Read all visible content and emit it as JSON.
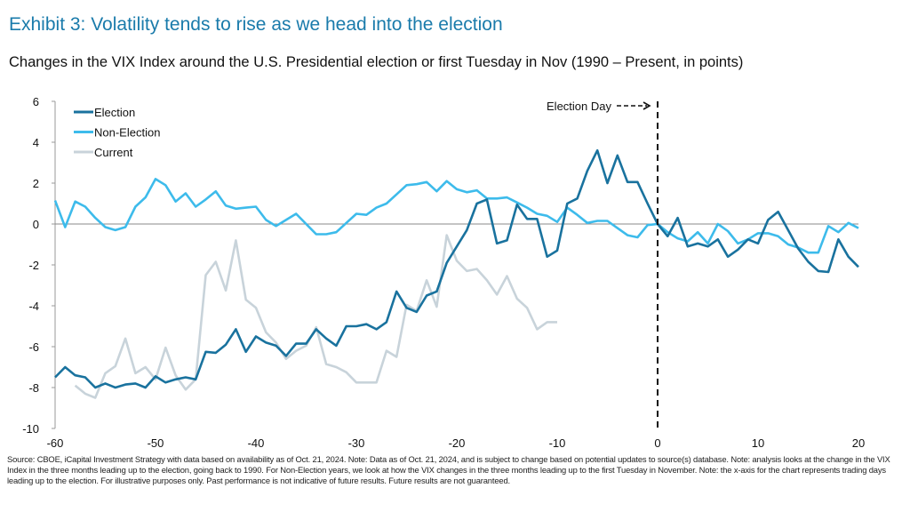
{
  "title": "Exhibit 3: Volatility tends to rise as we head into the election",
  "subtitle": "Changes in the VIX Index around the U.S. Presidential election or first Tuesday in Nov (1990 – Present, in points)",
  "source": "Source: CBOE, iCapital Investment Strategy with data based on availability as of Oct. 21, 2024. Note: Data as of Oct. 21, 2024, and is subject to change based on potential updates to source(s) database. Note: analysis looks at the change in the VIX Index in the three months leading up to the election, going back to 1990. For Non-Election years, we look at how the VIX changes in the three months leading up to the first Tuesday in November. Note: the x-axis for the chart represents trading days leading up to the election. For illustrative purposes only. Past performance is not indicative of future results. Future results are not guaranteed.",
  "chart_data": {
    "type": "line",
    "xlim": [
      -60,
      20
    ],
    "ylim": [
      -10,
      6
    ],
    "x_ticks": [
      -60,
      -50,
      -40,
      -30,
      -20,
      -10,
      0,
      10,
      20
    ],
    "y_ticks": [
      6,
      4,
      2,
      0,
      -2,
      -4,
      -6,
      -8,
      -10
    ],
    "grid": false,
    "legend_position": "top-left",
    "annotation": {
      "label": "Election Day",
      "x": 0
    },
    "series": [
      {
        "name": "Election",
        "color": "#19729e",
        "x_start": -60,
        "values": [
          -7.5,
          -7.0,
          -7.4,
          -7.5,
          -8.0,
          -7.8,
          -8.0,
          -7.85,
          -7.8,
          -8.0,
          -7.45,
          -7.75,
          -7.6,
          -7.5,
          -7.6,
          -6.25,
          -6.3,
          -5.9,
          -5.15,
          -6.25,
          -5.5,
          -5.8,
          -5.95,
          -6.45,
          -5.85,
          -5.85,
          -5.15,
          -5.6,
          -5.95,
          -5.0,
          -5.0,
          -4.9,
          -5.15,
          -4.8,
          -3.3,
          -4.1,
          -4.3,
          -3.5,
          -3.3,
          -1.9,
          -1.1,
          -0.3,
          1.0,
          1.2,
          -0.95,
          -0.8,
          0.95,
          0.25,
          0.25,
          -1.6,
          -1.3,
          1.0,
          1.25,
          2.6,
          3.6,
          2.0,
          3.35,
          2.05,
          2.05,
          1.0,
          0.0,
          -0.6,
          0.3,
          -1.1,
          -0.95,
          -1.1,
          -0.75,
          -1.6,
          -1.25,
          -0.75,
          -0.95,
          0.2,
          0.6,
          -0.3,
          -1.2,
          -1.85,
          -2.3,
          -2.35,
          -0.75,
          -1.6,
          -2.1
        ]
      },
      {
        "name": "Non-Election",
        "color": "#3dbbeb",
        "x_start": -60,
        "values": [
          1.15,
          -0.15,
          1.1,
          0.85,
          0.3,
          -0.15,
          -0.3,
          -0.15,
          0.85,
          1.3,
          2.2,
          1.9,
          1.1,
          1.5,
          0.85,
          1.2,
          1.6,
          0.9,
          0.75,
          0.8,
          0.85,
          0.2,
          -0.1,
          0.2,
          0.5,
          0.0,
          -0.5,
          -0.5,
          -0.4,
          0.05,
          0.5,
          0.45,
          0.8,
          1.0,
          1.45,
          1.9,
          1.95,
          2.05,
          1.6,
          2.1,
          1.7,
          1.55,
          1.65,
          1.25,
          1.25,
          1.3,
          1.05,
          0.8,
          0.5,
          0.4,
          0.1,
          0.8,
          0.45,
          0.05,
          0.15,
          0.15,
          -0.2,
          -0.55,
          -0.65,
          -0.05,
          0.0,
          -0.4,
          -0.7,
          -0.85,
          -0.4,
          -0.95,
          0.0,
          -0.35,
          -0.95,
          -0.75,
          -0.45,
          -0.45,
          -0.6,
          -1.0,
          -1.15,
          -1.4,
          -1.4,
          -0.1,
          -0.4,
          0.05,
          -0.2
        ]
      },
      {
        "name": "Current",
        "color": "#c8d3da",
        "x_start": -58,
        "values": [
          -7.9,
          -8.3,
          -8.5,
          -7.3,
          -6.95,
          -5.6,
          -7.3,
          -7.0,
          -7.6,
          -6.05,
          -7.4,
          -8.1,
          -7.6,
          -2.5,
          -1.85,
          -3.25,
          -0.8,
          -3.7,
          -4.1,
          -5.3,
          -5.8,
          -6.6,
          -6.2,
          -5.95,
          -5.05,
          -6.85,
          -7.0,
          -7.25,
          -7.75,
          -7.75,
          -7.75,
          -6.2,
          -6.5,
          -3.95,
          -4.25,
          -2.75,
          -4.05,
          -0.55,
          -1.8,
          -2.3,
          -2.2,
          -2.75,
          -3.45,
          -2.55,
          -3.65,
          -4.1,
          -5.15,
          -4.8,
          -4.8
        ]
      }
    ]
  }
}
